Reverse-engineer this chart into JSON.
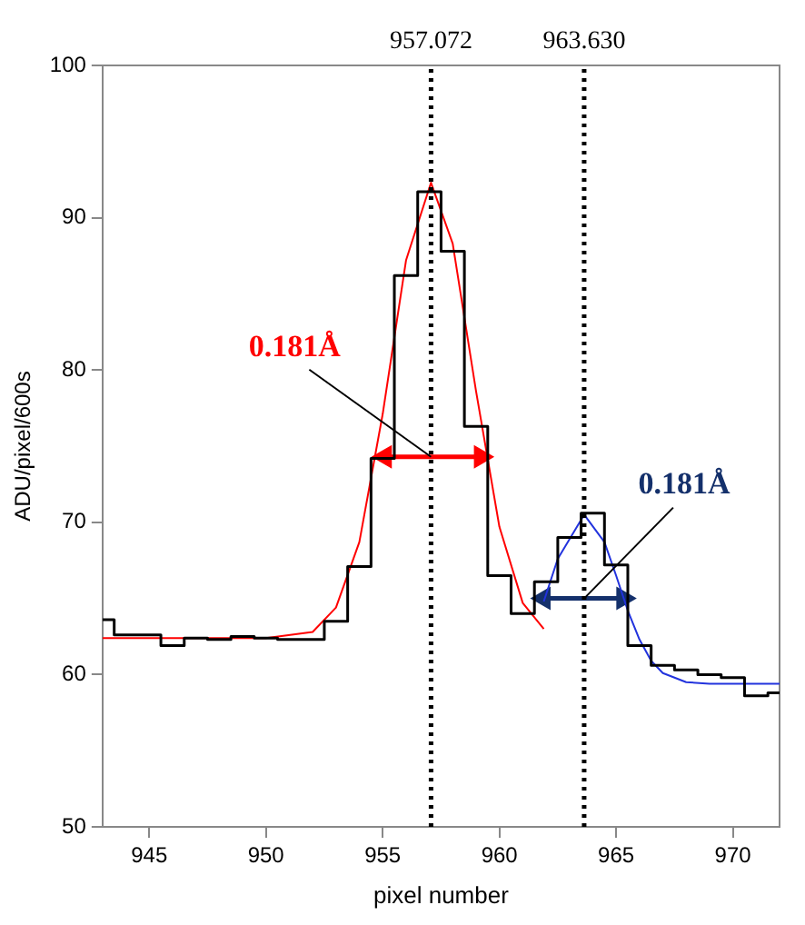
{
  "chart_data": {
    "type": "line",
    "xlabel": "pixel number",
    "ylabel": "ADU/pixel/600s",
    "xlim": [
      943,
      972
    ],
    "ylim": [
      50,
      100
    ],
    "xticks": [
      945,
      950,
      955,
      960,
      965,
      970
    ],
    "yticks": [
      50,
      60,
      70,
      80,
      90,
      100
    ],
    "grid": false,
    "legend": false,
    "marker": "none",
    "series": [
      {
        "type": "step",
        "color": "#000000",
        "x": [
          943,
          944,
          945,
          946,
          947,
          948,
          949,
          950,
          951,
          952,
          953,
          954,
          955,
          956,
          957,
          958,
          959,
          960,
          961,
          962,
          963,
          964,
          965,
          966,
          967,
          968,
          969,
          970,
          971,
          972
        ],
        "values": [
          63.6,
          62.6,
          62.6,
          61.9,
          62.4,
          62.3,
          62.5,
          62.4,
          62.3,
          62.3,
          63.5,
          67.1,
          74.2,
          86.2,
          91.7,
          87.8,
          76.3,
          66.5,
          64.0,
          66.1,
          69.0,
          70.6,
          67.2,
          61.9,
          60.6,
          60.3,
          60.0,
          59.8,
          58.6,
          58.8
        ]
      },
      {
        "type": "line",
        "color": "#ff0000",
        "x": [
          943,
          950,
          952,
          953,
          954,
          955,
          956,
          957.07,
          958,
          959,
          960,
          961,
          961.9
        ],
        "values": [
          62.4,
          62.4,
          62.8,
          64.4,
          68.7,
          77.1,
          87.2,
          92.3,
          88.3,
          78.6,
          69.7,
          64.7,
          63.0
        ]
      },
      {
        "type": "line",
        "color": "#2233dd",
        "x": [
          961.9,
          962.5,
          963.63,
          964.5,
          965,
          965.5,
          966,
          966.5,
          967,
          968,
          969,
          972
        ],
        "values": [
          64.8,
          67.6,
          70.5,
          68.7,
          66.5,
          64.2,
          62.3,
          60.9,
          60.1,
          59.5,
          59.4,
          59.4
        ]
      },
      {
        "type": "line",
        "marker": "triangle",
        "color": "#ff0000",
        "x": [
          955.1,
          959.2
        ],
        "values": [
          74.3,
          74.3
        ]
      },
      {
        "type": "line",
        "marker": "triangle",
        "color": "#14306b",
        "x": [
          961.9,
          965.3
        ],
        "values": [
          65.0,
          65.0
        ]
      }
    ],
    "ref_lines": [
      {
        "axis": "x",
        "value": 957.072,
        "label": "957.072",
        "color": "#000000",
        "line_style": "dotted"
      },
      {
        "axis": "x",
        "value": 963.63,
        "label": "963.630",
        "color": "#000000",
        "line_style": "dotted"
      }
    ],
    "annotations": [
      {
        "text": "0.181Å",
        "x": 957.07,
        "y": 74.3
      },
      {
        "text": "0.181Å",
        "x": 963.63,
        "y": 65.0
      }
    ]
  }
}
